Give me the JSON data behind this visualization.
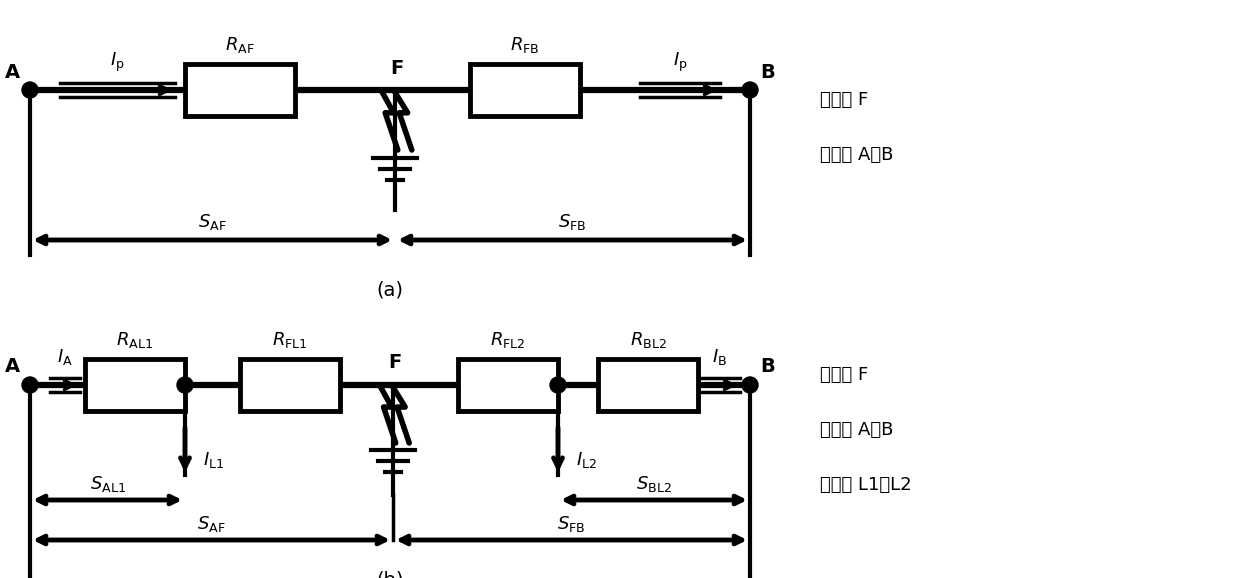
{
  "bg_color": "#ffffff",
  "line_color": "#000000",
  "lw_main": 3.0,
  "lw_thick": 3.5,
  "fig_width": 12.39,
  "fig_height": 5.78,
  "right_text_a": [
    "故障点 F",
    "测量点 A、B"
  ],
  "right_text_b": [
    "故障点 F",
    "测量点 A、B",
    "分流点 L1、L2"
  ]
}
